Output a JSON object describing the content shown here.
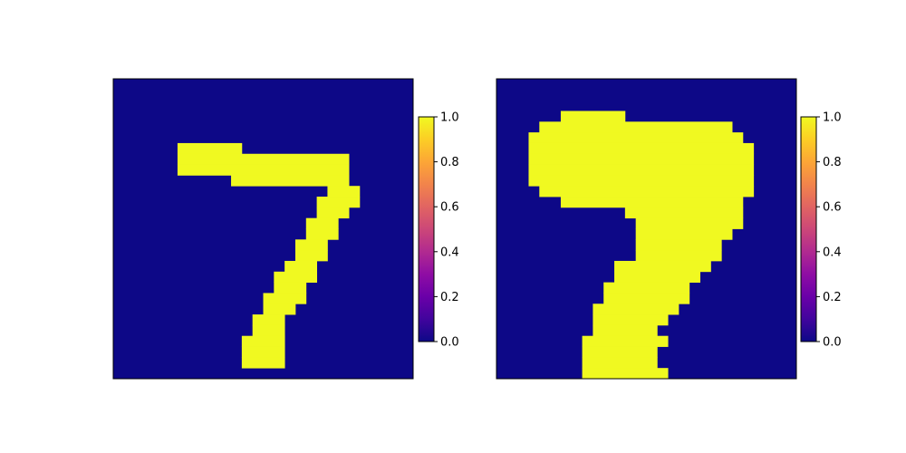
{
  "figure": {
    "background": "#ffffff",
    "colormap": "plasma",
    "colors": {
      "low": "#0d0887",
      "high": "#f0f921"
    }
  },
  "chart_data": [
    {
      "type": "heatmap",
      "title": "",
      "xlabel": "",
      "ylabel": "",
      "axes_ticks": false,
      "rows": 28,
      "cols": 28,
      "vmin": 0.0,
      "vmax": 1.0,
      "colorbar_ticks": [
        "0.0",
        "0.2",
        "0.4",
        "0.6",
        "0.8",
        "1.0"
      ],
      "matrix": [
        "............................",
        "............................",
        "............................",
        "............................",
        "............................",
        "............................",
        "......######................",
        "......################......",
        "......################......",
        "...........###########......",
        "....................###.....",
        "...................####.....",
        "...................###......",
        "..................###.......",
        "..................###.......",
        ".................###........",
        ".................###........",
        "................###.........",
        "...............####.........",
        "...............###..........",
        "..............####..........",
        "..............###...........",
        ".............###............",
        ".............###............",
        "............####............",
        "............####............",
        "............####............",
        "............................"
      ]
    },
    {
      "type": "heatmap",
      "title": "",
      "xlabel": "",
      "ylabel": "",
      "axes_ticks": false,
      "rows": 28,
      "cols": 28,
      "vmin": 0.0,
      "vmax": 1.0,
      "colorbar_ticks": [
        "0.0",
        "0.2",
        "0.4",
        "0.6",
        "0.8",
        "1.0"
      ],
      "matrix": [
        "............................",
        "............................",
        "............................",
        "......######................",
        "....##################......",
        "...####################.....",
        "...#####################....",
        "...#####################....",
        "...#####################....",
        "...#####################....",
        "....####################....",
        "......#################.....",
        "............###########.....",
        ".............##########.....",
        ".............#########......",
        ".............########.......",
        ".............########.......",
        "...........#########........",
        "...........########.........",
        "..........########..........",
        "..........########..........",
        ".........########...........",
        ".........#######............",
        ".........######.............",
        "........########............",
        "........#######.............",
        "........#######.............",
        "........########............"
      ]
    }
  ]
}
